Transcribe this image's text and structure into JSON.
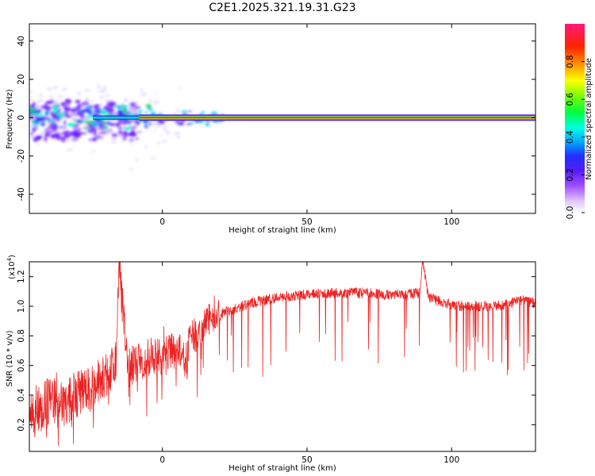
{
  "title": "C2E1.2025.321.19.31.G23",
  "colors": {
    "snr_line": "#ee2222",
    "frame": "#000000"
  },
  "chart_data": [
    {
      "type": "heatmap",
      "name": "spectrogram",
      "xlabel": "Height of straight line (km)",
      "ylabel": "Frequency (Hz)",
      "xlim": [
        -46,
        129
      ],
      "ylim": [
        -50,
        49
      ],
      "xticks": [
        0,
        50,
        100
      ],
      "xtick_labels": [
        "0",
        "50",
        "100"
      ],
      "yticks": [
        40,
        20,
        0,
        -20,
        -40
      ],
      "ytick_labels": [
        "40",
        "20",
        "0",
        "-20",
        "-40"
      ],
      "dominant_frequency_hz": 0,
      "colorbar": {
        "label": "Normalized spectral amplitude",
        "range": [
          0,
          1
        ],
        "ticks": [
          0.0,
          0.2,
          0.4,
          0.6,
          0.8
        ],
        "tick_labels": [
          "0.0",
          "0.2",
          "0.4",
          "0.6",
          "0.8"
        ]
      }
    },
    {
      "type": "line",
      "name": "snr",
      "xlabel": "Height of straight line (km)",
      "ylabel": "SNR (10 * v/v)",
      "multiplier_label": "(x10",
      "multiplier_exp": "4",
      "multiplier_close": ")",
      "xlim": [
        -46,
        129
      ],
      "ylim": [
        0.02,
        1.3
      ],
      "xticks": [
        0,
        50,
        100
      ],
      "xtick_labels": [
        "0",
        "50",
        "100"
      ],
      "yticks": [
        0.2,
        0.4,
        0.6,
        0.8,
        1.0,
        1.2
      ],
      "ytick_labels": [
        "0.2",
        "0.4",
        "0.6",
        "0.8",
        "1.0",
        "1.2"
      ],
      "series": [
        {
          "name": "SNR",
          "x": [
            -46,
            -40,
            -35,
            -30,
            -25,
            -20,
            -16,
            -15,
            -12,
            -10,
            -5,
            0,
            5,
            8,
            10,
            12,
            15,
            20,
            25,
            30,
            35,
            40,
            45,
            50,
            55,
            60,
            65,
            70,
            75,
            80,
            85,
            89,
            90,
            92,
            95,
            100,
            105,
            110,
            115,
            120,
            125,
            129
          ],
          "values": [
            0.28,
            0.34,
            0.35,
            0.4,
            0.44,
            0.52,
            0.62,
            1.28,
            0.58,
            0.6,
            0.66,
            0.66,
            0.74,
            0.62,
            0.85,
            0.77,
            0.9,
            0.95,
            0.98,
            1.02,
            1.04,
            1.06,
            1.07,
            1.08,
            1.09,
            1.09,
            1.09,
            1.09,
            1.08,
            1.08,
            1.08,
            1.09,
            1.3,
            1.06,
            1.04,
            1.01,
            1.0,
            1.0,
            1.0,
            1.02,
            1.04,
            1.02
          ]
        }
      ]
    }
  ]
}
